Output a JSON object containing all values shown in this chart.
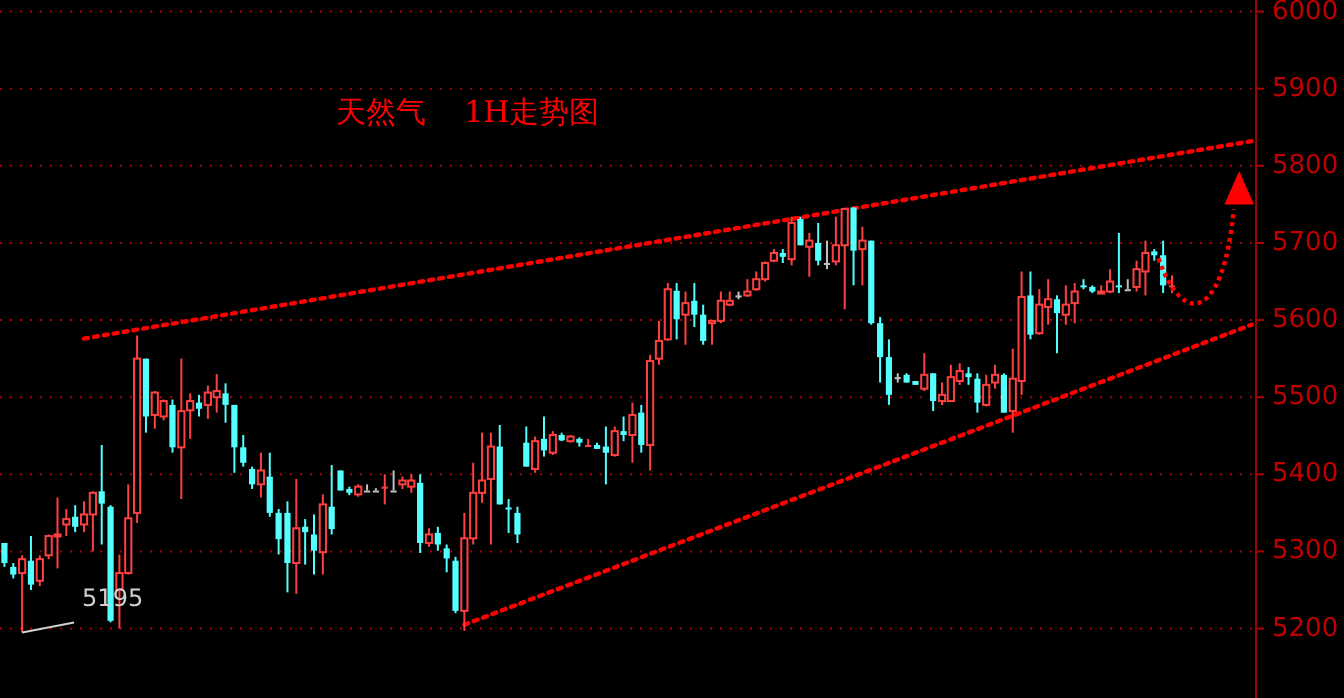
{
  "chart_data": {
    "type": "candlestick",
    "title": "天然气    1H走势图",
    "categories": [
      null,
      null,
      null,
      null,
      null,
      null,
      null,
      null,
      null,
      null,
      null,
      null,
      null,
      null,
      null,
      null,
      null,
      null,
      null,
      null,
      null,
      null,
      null,
      null,
      null,
      null,
      null,
      null,
      null,
      null,
      null,
      null,
      null,
      null,
      null,
      null,
      null,
      null,
      null,
      null,
      null,
      null,
      null,
      null,
      null,
      null,
      null,
      null,
      null,
      null,
      null,
      null,
      null,
      null,
      null,
      null,
      null,
      null,
      null,
      null,
      null,
      null,
      null,
      null,
      null,
      null,
      null,
      null,
      null,
      null,
      null,
      null,
      null,
      null,
      null,
      null,
      null,
      null,
      null,
      null,
      null,
      null,
      null,
      null,
      null,
      null,
      null,
      null,
      null,
      null,
      null,
      null,
      null,
      null,
      null,
      null,
      null,
      null,
      null,
      null,
      null,
      null,
      null,
      null,
      null,
      null,
      null,
      null,
      null,
      null,
      null,
      null,
      null,
      null,
      null,
      null,
      null,
      null,
      null,
      null,
      null,
      null,
      null,
      null,
      null,
      null,
      null,
      null,
      null,
      null,
      null,
      null,
      null,
      null,
      null,
      null,
      null,
      null,
      null,
      null,
      null,
      null
    ],
    "ohlc": [
      [
        5311,
        5311,
        5280,
        5285
      ],
      [
        5280,
        5285,
        5265,
        5270
      ],
      [
        5272,
        5295,
        5195,
        5290
      ],
      [
        5288,
        5320,
        5250,
        5257
      ],
      [
        5262,
        5295,
        5255,
        5290
      ],
      [
        5295,
        5322,
        5290,
        5320
      ],
      [
        5320,
        5370,
        5278,
        5322
      ],
      [
        5335,
        5355,
        5320,
        5342
      ],
      [
        5345,
        5360,
        5325,
        5332
      ],
      [
        5335,
        5365,
        5325,
        5348
      ],
      [
        5348,
        5378,
        5300,
        5376
      ],
      [
        5378,
        5438,
        5309,
        5362
      ],
      [
        5358,
        5360,
        5208,
        5210
      ],
      [
        5250,
        5296,
        5200,
        5272
      ],
      [
        5272,
        5387,
        5270,
        5343
      ],
      [
        5350,
        5580,
        5337,
        5550
      ],
      [
        5550,
        5550,
        5454,
        5475
      ],
      [
        5477,
        5508,
        5459,
        5506
      ],
      [
        5475,
        5497,
        5470,
        5495
      ],
      [
        5490,
        5497,
        5428,
        5435
      ],
      [
        5435,
        5550,
        5368,
        5482
      ],
      [
        5483,
        5505,
        5446,
        5495
      ],
      [
        5493,
        5503,
        5475,
        5485
      ],
      [
        5490,
        5515,
        5472,
        5506
      ],
      [
        5500,
        5530,
        5480,
        5508
      ],
      [
        5505,
        5518,
        5467,
        5490
      ],
      [
        5490,
        5490,
        5402,
        5435
      ],
      [
        5435,
        5451,
        5410,
        5415
      ],
      [
        5407,
        5410,
        5381,
        5387
      ],
      [
        5387,
        5428,
        5370,
        5405
      ],
      [
        5397,
        5428,
        5345,
        5350
      ],
      [
        5350,
        5355,
        5296,
        5316
      ],
      [
        5350,
        5365,
        5247,
        5285
      ],
      [
        5285,
        5394,
        5245,
        5330
      ],
      [
        5332,
        5342,
        5283,
        5325
      ],
      [
        5322,
        5348,
        5270,
        5301
      ],
      [
        5299,
        5374,
        5270,
        5361
      ],
      [
        5358,
        5412,
        5322,
        5329
      ],
      [
        5405,
        5405,
        5379,
        5379
      ],
      [
        5381,
        5384,
        5373,
        5376
      ],
      [
        5374,
        5387,
        5371,
        5384
      ],
      [
        5379,
        5387,
        5379,
        5379
      ],
      [
        5379,
        5382,
        5379,
        5379
      ],
      [
        5384,
        5400,
        5361,
        5384
      ],
      [
        5379,
        5405,
        5379,
        5379
      ],
      [
        5387,
        5397,
        5381,
        5392
      ],
      [
        5384,
        5400,
        5376,
        5392
      ],
      [
        5389,
        5400,
        5298,
        5311
      ],
      [
        5311,
        5330,
        5306,
        5322
      ],
      [
        5324,
        5332,
        5301,
        5309
      ],
      [
        5304,
        5309,
        5273,
        5291
      ],
      [
        5288,
        5293,
        5220,
        5223
      ],
      [
        5223,
        5350,
        5197,
        5317
      ],
      [
        5317,
        5415,
        5309,
        5376
      ],
      [
        5376,
        5454,
        5363,
        5392
      ],
      [
        5394,
        5454,
        5309,
        5436
      ],
      [
        5436,
        5464,
        5361,
        5361
      ],
      [
        5357,
        5368,
        5324,
        5355
      ],
      [
        5350,
        5358,
        5311,
        5322
      ],
      [
        5441,
        5462,
        5410,
        5410
      ],
      [
        5407,
        5449,
        5402,
        5443
      ],
      [
        5446,
        5475,
        5423,
        5431
      ],
      [
        5428,
        5456,
        5425,
        5451
      ],
      [
        5451,
        5454,
        5443,
        5444
      ],
      [
        5443,
        5451,
        5441,
        5449
      ],
      [
        5446,
        5448,
        5436,
        5441
      ],
      [
        5438,
        5446,
        5438,
        5438
      ],
      [
        5438,
        5441,
        5433,
        5433
      ],
      [
        5436,
        5462,
        5387,
        5428
      ],
      [
        5425,
        5462,
        5423,
        5456
      ],
      [
        5456,
        5475,
        5443,
        5451
      ],
      [
        5451,
        5493,
        5415,
        5477
      ],
      [
        5480,
        5490,
        5428,
        5438
      ],
      [
        5438,
        5555,
        5405,
        5547
      ],
      [
        5550,
        5599,
        5542,
        5573
      ],
      [
        5575,
        5648,
        5573,
        5640
      ],
      [
        5638,
        5648,
        5575,
        5601
      ],
      [
        5607,
        5637,
        5568,
        5622
      ],
      [
        5625,
        5648,
        5591,
        5607
      ],
      [
        5607,
        5620,
        5568,
        5573
      ],
      [
        5596,
        5599,
        5568,
        5599
      ],
      [
        5599,
        5637,
        5596,
        5625
      ],
      [
        5620,
        5637,
        5618,
        5625
      ],
      [
        5632,
        5637,
        5627,
        5632
      ],
      [
        5632,
        5653,
        5630,
        5637
      ],
      [
        5640,
        5663,
        5638,
        5653
      ],
      [
        5653,
        5676,
        5650,
        5674
      ],
      [
        5677,
        5692,
        5675,
        5687
      ],
      [
        5687,
        5692,
        5674,
        5682
      ],
      [
        5679,
        5734,
        5671,
        5726
      ],
      [
        5731,
        5734,
        5697,
        5697
      ],
      [
        5695,
        5713,
        5656,
        5703
      ],
      [
        5700,
        5726,
        5671,
        5677
      ],
      [
        5674,
        5703,
        5666,
        5674
      ],
      [
        5676,
        5734,
        5671,
        5697
      ],
      [
        5697,
        5744,
        5614,
        5744
      ],
      [
        5746,
        5746,
        5645,
        5690
      ],
      [
        5692,
        5721,
        5645,
        5703
      ],
      [
        5703,
        5703,
        5594,
        5596
      ],
      [
        5596,
        5604,
        5519,
        5552
      ],
      [
        5552,
        5575,
        5490,
        5503
      ],
      [
        5526,
        5531,
        5519,
        5526
      ],
      [
        5529,
        5531,
        5519,
        5519
      ],
      [
        5521,
        5521,
        5516,
        5516
      ],
      [
        5511,
        5557,
        5508,
        5529
      ],
      [
        5531,
        5531,
        5482,
        5495
      ],
      [
        5495,
        5519,
        5490,
        5503
      ],
      [
        5495,
        5542,
        5495,
        5526
      ],
      [
        5521,
        5544,
        5516,
        5534
      ],
      [
        5531,
        5539,
        5516,
        5526
      ],
      [
        5524,
        5531,
        5480,
        5493
      ],
      [
        5490,
        5529,
        5488,
        5516
      ],
      [
        5519,
        5542,
        5511,
        5529
      ],
      [
        5529,
        5531,
        5480,
        5480
      ],
      [
        5482,
        5563,
        5454,
        5524
      ],
      [
        5521,
        5663,
        5503,
        5630
      ],
      [
        5632,
        5663,
        5575,
        5581
      ],
      [
        5583,
        5640,
        5581,
        5620
      ],
      [
        5617,
        5653,
        5594,
        5627
      ],
      [
        5627,
        5632,
        5557,
        5609
      ],
      [
        5607,
        5645,
        5594,
        5620
      ],
      [
        5622,
        5648,
        5596,
        5637
      ],
      [
        5645,
        5653,
        5640,
        5643
      ],
      [
        5643,
        5645,
        5635,
        5637
      ],
      [
        5635,
        5645,
        5635,
        5637
      ],
      [
        5637,
        5666,
        5635,
        5650
      ],
      [
        5645,
        5713,
        5635,
        5643
      ],
      [
        5640,
        5653,
        5640,
        5640
      ],
      [
        5643,
        5677,
        5637,
        5666
      ],
      [
        5663,
        5703,
        5632,
        5687
      ],
      [
        5689,
        5692,
        5677,
        5684
      ],
      [
        5684,
        5703,
        5635,
        5645
      ],
      [
        5645,
        5658,
        5635,
        5645
      ],
      null,
      null,
      null,
      null,
      null,
      null,
      null,
      null,
      null
    ],
    "colors": [
      "#54ffff",
      "#54ffff",
      "#ff4040",
      "#54ffff",
      "#ff4040",
      "#ff4040",
      "#ff4040",
      "#ff4040",
      "#54ffff",
      "#ff4040",
      "#ff4040",
      "#54ffff",
      "#54ffff",
      "#ff4040",
      "#ff4040",
      "#ff4040",
      "#54ffff",
      "#ff4040",
      "#ff4040",
      "#54ffff",
      "#ff4040",
      "#ff4040",
      "#54ffff",
      "#ff4040",
      "#ff4040",
      "#54ffff",
      "#54ffff",
      "#54ffff",
      "#54ffff",
      "#ff4040",
      "#54ffff",
      "#54ffff",
      "#54ffff",
      "#ff4040",
      "#54ffff",
      "#54ffff",
      "#ff4040",
      "#54ffff",
      "#54ffff",
      "#54ffff",
      "#ff4040",
      "#c0c0c0",
      "#c0c0c0",
      "#ff4040",
      "#c0c0c0",
      "#ff4040",
      "#ff4040",
      "#54ffff",
      "#ff4040",
      "#54ffff",
      "#54ffff",
      "#54ffff",
      "#ff4040",
      "#ff4040",
      "#ff4040",
      "#ff4040",
      "#54ffff",
      "#54ffff",
      "#54ffff",
      "#54ffff",
      "#ff4040",
      "#54ffff",
      "#ff4040",
      "#54ffff",
      "#ff4040",
      "#54ffff",
      "#ff4040",
      "#54ffff",
      "#54ffff",
      "#ff4040",
      "#54ffff",
      "#ff4040",
      "#54ffff",
      "#ff4040",
      "#ff4040",
      "#ff4040",
      "#54ffff",
      "#ff4040",
      "#54ffff",
      "#54ffff",
      "#ff4040",
      "#ff4040",
      "#ff4040",
      "#c0c0c0",
      "#ff4040",
      "#ff4040",
      "#ff4040",
      "#ff4040",
      "#54ffff",
      "#ff4040",
      "#54ffff",
      "#ff4040",
      "#54ffff",
      "#c0c0c0",
      "#ff4040",
      "#ff4040",
      "#54ffff",
      "#ff4040",
      "#54ffff",
      "#54ffff",
      "#54ffff",
      "#c0c0c0",
      "#54ffff",
      "#54ffff",
      "#ff4040",
      "#54ffff",
      "#ff4040",
      "#ff4040",
      "#ff4040",
      "#54ffff",
      "#54ffff",
      "#ff4040",
      "#ff4040",
      "#54ffff",
      "#ff4040",
      "#ff4040",
      "#54ffff",
      "#ff4040",
      "#ff4040",
      "#54ffff",
      "#ff4040",
      "#ff4040",
      "#54ffff",
      "#54ffff",
      "#ff4040",
      "#ff4040",
      "#54ffff",
      "#c0c0c0",
      "#ff4040",
      "#ff4040",
      "#54ffff",
      "#54ffff",
      "#ff4040",
      null,
      null,
      null,
      null,
      null,
      null,
      null,
      null,
      null
    ],
    "series": [
      {
        "type": "line",
        "color": "#ff0000",
        "line_style": "dotted",
        "values": [
          null,
          null,
          null,
          null,
          null,
          null,
          null,
          null,
          null,
          5576,
          null,
          null,
          null,
          null,
          null,
          null,
          null,
          null,
          null,
          null,
          null,
          null,
          null,
          null,
          null,
          null,
          null,
          null,
          null,
          null,
          null,
          null,
          null,
          null,
          null,
          null,
          null,
          null,
          null,
          null,
          null,
          null,
          null,
          null,
          null,
          null,
          null,
          null,
          null,
          null,
          null,
          null,
          null,
          null,
          null,
          null,
          null,
          null,
          null,
          null,
          null,
          null,
          null,
          null,
          null,
          null,
          null,
          null,
          null,
          null,
          null,
          null,
          null,
          null,
          null,
          null,
          null,
          null,
          null,
          null,
          null,
          null,
          null,
          null,
          null,
          null,
          null,
          null,
          null,
          null,
          null,
          null,
          null,
          null,
          null,
          null,
          null,
          null,
          null,
          null,
          null,
          null,
          null,
          null,
          null,
          null,
          null,
          null,
          null,
          null,
          null,
          null,
          null,
          null,
          null,
          null,
          null,
          null,
          null,
          null,
          null,
          null,
          null,
          null,
          null,
          null,
          null,
          null,
          null,
          null,
          null,
          null,
          null,
          null,
          null,
          null,
          null,
          null,
          null,
          null,
          null,
          5832
        ]
      },
      {
        "type": "line",
        "color": "#ff0000",
        "line_style": "dotted",
        "values": [
          null,
          null,
          null,
          null,
          null,
          null,
          null,
          null,
          null,
          null,
          null,
          null,
          null,
          null,
          null,
          null,
          null,
          null,
          null,
          null,
          null,
          null,
          null,
          null,
          null,
          null,
          null,
          null,
          null,
          null,
          null,
          null,
          null,
          null,
          null,
          null,
          null,
          null,
          null,
          null,
          null,
          null,
          null,
          null,
          null,
          null,
          null,
          null,
          null,
          null,
          null,
          null,
          5205,
          null,
          null,
          null,
          null,
          null,
          null,
          null,
          null,
          null,
          null,
          null,
          null,
          null,
          null,
          null,
          null,
          null,
          null,
          null,
          null,
          null,
          null,
          null,
          null,
          null,
          null,
          null,
          null,
          null,
          null,
          null,
          null,
          null,
          null,
          null,
          null,
          null,
          null,
          null,
          null,
          null,
          null,
          null,
          null,
          null,
          null,
          null,
          null,
          null,
          null,
          null,
          null,
          null,
          null,
          null,
          null,
          null,
          null,
          null,
          null,
          null,
          null,
          null,
          null,
          null,
          null,
          null,
          null,
          null,
          null,
          null,
          null,
          null,
          null,
          null,
          null,
          null,
          null,
          null,
          null,
          null,
          null,
          null,
          null,
          null,
          null,
          null,
          null,
          5594
        ]
      }
    ],
    "ylim": [
      5110,
      6015
    ],
    "yticks": [
      5200,
      5300,
      5400,
      5500,
      5600,
      5700,
      5800,
      5900,
      6000
    ],
    "grid": "y",
    "tick_labels": "y",
    "annotations": [
      {
        "text": "5195",
        "y": 5195
      }
    ]
  }
}
